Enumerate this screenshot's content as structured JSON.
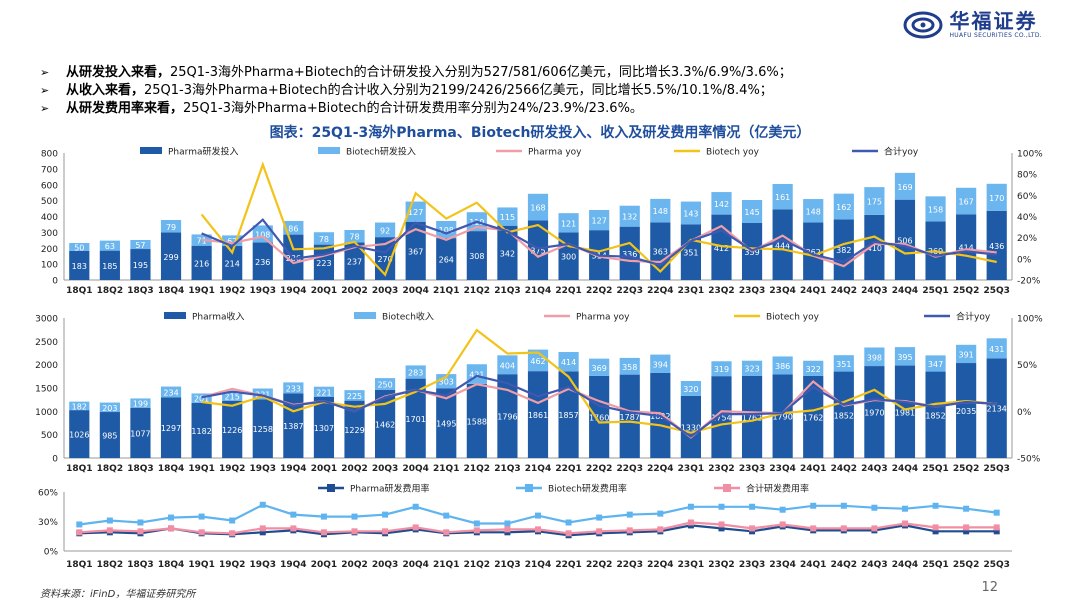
{
  "header": {
    "logo_cn": "华福证券",
    "logo_en": "HUAFU SECURITIES CO.,LTD."
  },
  "bullets": [
    {
      "head": "从研发投入来看，",
      "text": "25Q1-3海外Pharma+Biotech的合计研发投入分别为527/581/606亿美元，同比增长3.3%/6.9%/3.6%；"
    },
    {
      "head": "从收入来看，",
      "text": "25Q1-3海外Pharma+Biotech的合计收入分别为2199/2426/2566亿美元，同比增长5.5%/10.1%/8.4%；"
    },
    {
      "head": "从研发费用率来看，",
      "text": "25Q1-3海外Pharma+Biotech的合计研发费用率分别为24%/23.9%/23.6%。"
    }
  ],
  "chart_title": "图表：25Q1-3海外Pharma、Biotech研发投入、收入及研发费用率情况（亿美元）",
  "footer": {
    "source": "资料来源：iFinD，华福证券研究所",
    "page": "12"
  },
  "colors": {
    "pharma": "#1f5aa6",
    "biotech": "#6cb6ef",
    "pharma_yoy": "#ef9da6",
    "biotech_yoy": "#f2c318",
    "total_yoy": "#4058b0",
    "pharma_rate": "#1f4d8f",
    "biotech_rate": "#5fb4f0",
    "total_rate": "#f28ea3"
  },
  "chart_data": [
    {
      "type": "bar",
      "stacked": true,
      "categories": [
        "18Q1",
        "18Q2",
        "18Q3",
        "18Q4",
        "19Q1",
        "19Q2",
        "19Q3",
        "19Q4",
        "20Q1",
        "20Q2",
        "20Q3",
        "20Q4",
        "21Q1",
        "21Q2",
        "21Q3",
        "21Q4",
        "22Q1",
        "22Q2",
        "22Q3",
        "22Q4",
        "23Q1",
        "23Q2",
        "23Q3",
        "23Q4",
        "24Q1",
        "24Q2",
        "24Q3",
        "24Q4",
        "25Q1",
        "25Q2",
        "25Q3"
      ],
      "series": [
        {
          "name": "Pharma研发投入",
          "type": "bar",
          "axis": "left",
          "values": [
            183,
            185,
            195,
            299,
            216,
            214,
            236,
            286,
            223,
            237,
            270,
            367,
            264,
            308,
            342,
            375,
            300,
            314,
            336,
            363,
            351,
            412,
            359,
            444,
            362,
            382,
            410,
            506,
            369,
            414,
            436
          ]
        },
        {
          "name": "Biotech研发投入",
          "type": "bar",
          "axis": "left",
          "values": [
            50,
            63,
            57,
            79,
            71,
            67,
            108,
            86,
            78,
            78,
            92,
            127,
            108,
            119,
            115,
            168,
            121,
            127,
            132,
            148,
            143,
            142,
            145,
            161,
            148,
            162,
            175,
            169,
            158,
            167,
            170
          ]
        },
        {
          "name": "Pharma yoy",
          "type": "line",
          "axis": "right",
          "values": [
            null,
            null,
            null,
            null,
            18,
            15,
            21,
            -4,
            3,
            11,
            14,
            28,
            18,
            30,
            27,
            2,
            14,
            2,
            -2,
            -3,
            17,
            31,
            7,
            22,
            3,
            -7,
            14,
            14,
            2,
            9,
            6
          ]
        },
        {
          "name": "Biotech yoy",
          "type": "line",
          "axis": "right",
          "values": [
            null,
            null,
            null,
            null,
            42,
            6,
            89,
            9,
            10,
            16,
            -15,
            62,
            38,
            53,
            25,
            32,
            12,
            7,
            15,
            -12,
            18,
            12,
            10,
            9,
            3,
            14,
            21,
            5,
            7,
            3,
            -3
          ]
        },
        {
          "name": "合计yoy",
          "type": "line",
          "axis": "right",
          "values": [
            null,
            null,
            null,
            null,
            24,
            12,
            37,
            0,
            4,
            12,
            6,
            34,
            24,
            35,
            26,
            10,
            14,
            3,
            2,
            -6,
            17,
            27,
            8,
            18,
            4,
            -3,
            16,
            12,
            3,
            7,
            4
          ]
        }
      ],
      "ylim_left": [
        0,
        800
      ],
      "yticks_left": [
        0,
        100,
        200,
        300,
        400,
        500,
        600,
        700,
        800
      ],
      "ylim_right": [
        -20,
        100
      ],
      "yticks_right": [
        "-20%",
        "0%",
        "20%",
        "40%",
        "60%",
        "80%",
        "100%"
      ],
      "legend": [
        "Pharma研发投入",
        "Biotech研发投入",
        "Pharma yoy",
        "Biotech yoy",
        "合计yoy"
      ]
    },
    {
      "type": "bar",
      "stacked": true,
      "categories": [
        "18Q1",
        "18Q2",
        "18Q3",
        "18Q4",
        "19Q1",
        "19Q2",
        "19Q3",
        "19Q4",
        "20Q1",
        "20Q2",
        "20Q3",
        "20Q4",
        "21Q1",
        "21Q2",
        "21Q3",
        "21Q4",
        "22Q1",
        "22Q2",
        "22Q3",
        "22Q4",
        "23Q1",
        "23Q2",
        "23Q3",
        "23Q4",
        "24Q1",
        "24Q2",
        "24Q3",
        "24Q4",
        "25Q1",
        "25Q2",
        "25Q3"
      ],
      "series": [
        {
          "name": "Pharma收入",
          "type": "bar",
          "axis": "left",
          "values": [
            1026,
            985,
            1077,
            1297,
            1182,
            1226,
            1258,
            1387,
            1307,
            1229,
            1462,
            1701,
            1495,
            1588,
            1796,
            1861,
            1857,
            1760,
            1787,
            1822,
            1330,
            1754,
            1762,
            1790,
            1762,
            1852,
            1970,
            1981,
            1852,
            2035,
            2134
          ]
        },
        {
          "name": "Biotech收入",
          "type": "bar",
          "axis": "left",
          "values": [
            182,
            203,
            199,
            234,
            201,
            215,
            231,
            233,
            221,
            225,
            250,
            283,
            303,
            421,
            404,
            462,
            414,
            369,
            358,
            394,
            320,
            319,
            323,
            386,
            322,
            351,
            398,
            395,
            347,
            391,
            431
          ]
        },
        {
          "name": "Pharma yoy",
          "type": "line",
          "axis": "right",
          "values": [
            null,
            null,
            null,
            null,
            15,
            24,
            17,
            7,
            11,
            0,
            16,
            23,
            14,
            29,
            23,
            9,
            24,
            11,
            0,
            -2,
            -28,
            0,
            -1,
            -2,
            32,
            6,
            12,
            11,
            5,
            10,
            8
          ]
        },
        {
          "name": "Biotech yoy",
          "type": "line",
          "axis": "right",
          "values": [
            null,
            null,
            null,
            null,
            10,
            6,
            16,
            0,
            10,
            5,
            8,
            21,
            37,
            87,
            62,
            63,
            37,
            -12,
            -11,
            -15,
            -23,
            -14,
            -10,
            -2,
            1,
            10,
            23,
            2,
            8,
            11,
            8
          ]
        },
        {
          "name": "合计yoy",
          "type": "line",
          "axis": "right",
          "values": [
            null,
            null,
            null,
            null,
            15,
            21,
            17,
            6,
            11,
            0,
            15,
            23,
            17,
            38,
            30,
            16,
            26,
            6,
            -1,
            -5,
            -27,
            -3,
            -3,
            -2,
            26,
            7,
            13,
            10,
            5,
            10,
            8
          ]
        }
      ],
      "ylim_left": [
        0,
        3000
      ],
      "yticks_left": [
        0,
        500,
        1000,
        1500,
        2000,
        2500,
        3000
      ],
      "ylim_right": [
        -50,
        100
      ],
      "yticks_right": [
        "-50%",
        "0%",
        "50%",
        "100%"
      ],
      "legend": [
        "Pharma收入",
        "Biotech收入",
        "Pharma yoy",
        "Biotech yoy",
        "合计yoy"
      ]
    },
    {
      "type": "line",
      "categories": [
        "18Q1",
        "18Q2",
        "18Q3",
        "18Q4",
        "19Q1",
        "19Q2",
        "19Q3",
        "19Q4",
        "20Q1",
        "20Q2",
        "20Q3",
        "20Q4",
        "21Q1",
        "21Q2",
        "21Q3",
        "21Q4",
        "22Q1",
        "22Q2",
        "22Q3",
        "22Q4",
        "23Q1",
        "23Q2",
        "23Q3",
        "23Q4",
        "24Q1",
        "24Q2",
        "24Q3",
        "24Q4",
        "25Q1",
        "25Q2",
        "25Q3"
      ],
      "series": [
        {
          "name": "Pharma研发费用率",
          "values": [
            18,
            19,
            18,
            23,
            18,
            17,
            19,
            21,
            17,
            19,
            18,
            22,
            18,
            19,
            19,
            20,
            16,
            18,
            19,
            20,
            26,
            23,
            20,
            25,
            21,
            21,
            21,
            26,
            20,
            20,
            20
          ]
        },
        {
          "name": "Biotech研发费用率",
          "values": [
            27,
            31,
            29,
            34,
            35,
            31,
            47,
            37,
            35,
            35,
            37,
            45,
            36,
            28,
            28,
            36,
            29,
            34,
            37,
            38,
            45,
            45,
            45,
            42,
            46,
            46,
            44,
            43,
            46,
            43,
            39
          ]
        },
        {
          "name": "合计研发费用率",
          "values": [
            19,
            21,
            20,
            23,
            19,
            18,
            23,
            23,
            19,
            20,
            20,
            24,
            19,
            21,
            22,
            22,
            18,
            20,
            21,
            22,
            29,
            27,
            23,
            27,
            23,
            23,
            23,
            28,
            24,
            24,
            24
          ]
        }
      ],
      "ylim": [
        0,
        60
      ],
      "yticks": [
        "0%",
        "30%",
        "60%"
      ],
      "legend": [
        "Pharma研发费用率",
        "Biotech研发费用率",
        "合计研发费用率"
      ]
    }
  ]
}
